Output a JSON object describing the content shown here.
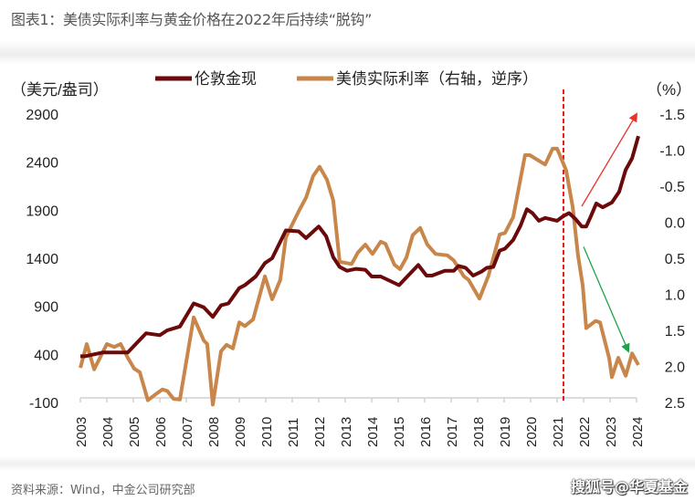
{
  "title": "图表1：美债实际利率与黄金价格在2022年后持续“脱钩”",
  "source": "资料来源：Wind，中金公司研究部",
  "watermark": "搜狐号@华夏基金",
  "chart_data": {
    "type": "line",
    "left_unit": "（美元/盎司）",
    "right_unit": "（%）",
    "left_ylim": [
      -100,
      2900
    ],
    "left_ticks": [
      "2900",
      "2400",
      "1900",
      "1400",
      "900",
      "400",
      "-100"
    ],
    "right_ylim": [
      -1.5,
      2.5
    ],
    "right_inverted": true,
    "right_ticks": [
      "-1.5",
      "-1.0",
      "-0.5",
      "0.0",
      "0.5",
      "1.0",
      "1.5",
      "2.0",
      "2.5"
    ],
    "x_ticks": [
      "2003",
      "2004",
      "2005",
      "2006",
      "2007",
      "2008",
      "2009",
      "2010",
      "2011",
      "2012",
      "2013",
      "2014",
      "2015",
      "2016",
      "2017",
      "2018",
      "2019",
      "2020",
      "2021",
      "2022",
      "2023",
      "2024"
    ],
    "grid": false,
    "legend_position": "top",
    "colors": {
      "gold": "#6b0a0a",
      "rate": "#c8864a",
      "divider": "#e0191b",
      "up_arrow": "#e8332e",
      "down_arrow": "#1ea34a"
    },
    "series": [
      {
        "name": "伦敦金现",
        "axis": "left",
        "points": [
          [
            2003.0,
            380
          ],
          [
            2003.17,
            380
          ],
          [
            2003.86,
            420
          ],
          [
            2004.79,
            420
          ],
          [
            2005.48,
            620
          ],
          [
            2006.0,
            600
          ],
          [
            2006.28,
            650
          ],
          [
            2006.76,
            690
          ],
          [
            2007.28,
            930
          ],
          [
            2007.66,
            890
          ],
          [
            2008.0,
            790
          ],
          [
            2008.31,
            910
          ],
          [
            2008.59,
            930
          ],
          [
            2009.0,
            1090
          ],
          [
            2009.21,
            1120
          ],
          [
            2009.62,
            1210
          ],
          [
            2009.97,
            1350
          ],
          [
            2010.24,
            1400
          ],
          [
            2010.76,
            1690
          ],
          [
            2011.24,
            1680
          ],
          [
            2011.52,
            1610
          ],
          [
            2012.0,
            1730
          ],
          [
            2012.28,
            1630
          ],
          [
            2012.55,
            1410
          ],
          [
            2012.79,
            1310
          ],
          [
            2013.07,
            1270
          ],
          [
            2013.41,
            1290
          ],
          [
            2013.76,
            1280
          ],
          [
            2014.0,
            1210
          ],
          [
            2014.34,
            1210
          ],
          [
            2015.03,
            1120
          ],
          [
            2015.76,
            1330
          ],
          [
            2016.07,
            1220
          ],
          [
            2016.28,
            1220
          ],
          [
            2016.76,
            1270
          ],
          [
            2017.1,
            1270
          ],
          [
            2017.28,
            1320
          ],
          [
            2017.55,
            1300
          ],
          [
            2017.83,
            1220
          ],
          [
            2018.14,
            1260
          ],
          [
            2018.34,
            1300
          ],
          [
            2018.59,
            1310
          ],
          [
            2018.83,
            1480
          ],
          [
            2019.03,
            1500
          ],
          [
            2019.34,
            1590
          ],
          [
            2019.62,
            1740
          ],
          [
            2019.86,
            1910
          ],
          [
            2020.07,
            1870
          ],
          [
            2020.31,
            1790
          ],
          [
            2020.55,
            1820
          ],
          [
            2021.0,
            1790
          ],
          [
            2021.24,
            1840
          ],
          [
            2021.45,
            1870
          ],
          [
            2021.69,
            1810
          ],
          [
            2021.93,
            1730
          ],
          [
            2022.1,
            1730
          ],
          [
            2022.28,
            1840
          ],
          [
            2022.48,
            1970
          ],
          [
            2022.72,
            1930
          ],
          [
            2023.07,
            1980
          ],
          [
            2023.34,
            2090
          ],
          [
            2023.59,
            2320
          ],
          [
            2023.83,
            2440
          ],
          [
            2024.07,
            2670
          ]
        ]
      },
      {
        "name": "美债实际利率（右轴，逆序）",
        "axis": "right",
        "points": [
          [
            2003.0,
            2.02
          ],
          [
            2003.24,
            1.69
          ],
          [
            2003.52,
            2.04
          ],
          [
            2004.0,
            1.69
          ],
          [
            2004.28,
            1.73
          ],
          [
            2004.52,
            1.69
          ],
          [
            2004.79,
            1.88
          ],
          [
            2005.03,
            2.03
          ],
          [
            2005.24,
            2.08
          ],
          [
            2005.55,
            2.47
          ],
          [
            2005.83,
            2.39
          ],
          [
            2006.1,
            2.32
          ],
          [
            2006.28,
            2.34
          ],
          [
            2006.52,
            2.45
          ],
          [
            2006.76,
            2.46
          ],
          [
            2007.28,
            1.32
          ],
          [
            2007.66,
            1.64
          ],
          [
            2007.79,
            1.69
          ],
          [
            2008.0,
            2.53
          ],
          [
            2008.31,
            1.79
          ],
          [
            2008.52,
            1.7
          ],
          [
            2008.76,
            1.75
          ],
          [
            2009.0,
            1.39
          ],
          [
            2009.21,
            1.44
          ],
          [
            2009.52,
            1.35
          ],
          [
            2009.97,
            0.75
          ],
          [
            2010.24,
            1.07
          ],
          [
            2010.55,
            0.8
          ],
          [
            2010.76,
            0.21
          ],
          [
            2011.24,
            -0.15
          ],
          [
            2011.52,
            -0.34
          ],
          [
            2011.79,
            -0.64
          ],
          [
            2012.03,
            -0.77
          ],
          [
            2012.31,
            -0.59
          ],
          [
            2012.55,
            -0.3
          ],
          [
            2012.79,
            0.55
          ],
          [
            2013.24,
            0.58
          ],
          [
            2013.48,
            0.42
          ],
          [
            2013.76,
            0.31
          ],
          [
            2014.03,
            0.44
          ],
          [
            2014.34,
            0.27
          ],
          [
            2014.52,
            0.3
          ],
          [
            2014.86,
            0.59
          ],
          [
            2015.07,
            0.65
          ],
          [
            2015.31,
            0.49
          ],
          [
            2015.55,
            0.18
          ],
          [
            2015.83,
            0.08
          ],
          [
            2016.1,
            0.31
          ],
          [
            2016.41,
            0.44
          ],
          [
            2016.86,
            0.46
          ],
          [
            2017.1,
            0.53
          ],
          [
            2017.48,
            0.75
          ],
          [
            2017.66,
            0.8
          ],
          [
            2018.07,
            1.06
          ],
          [
            2018.41,
            0.74
          ],
          [
            2018.83,
            0.17
          ],
          [
            2019.03,
            0.15
          ],
          [
            2019.34,
            -0.07
          ],
          [
            2019.79,
            -0.93
          ],
          [
            2019.97,
            -0.93
          ],
          [
            2020.55,
            -0.8
          ],
          [
            2020.83,
            -1.02
          ],
          [
            2021.0,
            -1.02
          ],
          [
            2021.34,
            -0.72
          ],
          [
            2021.59,
            -0.21
          ],
          [
            2021.79,
            0.46
          ],
          [
            2021.97,
            0.88
          ],
          [
            2022.1,
            1.47
          ],
          [
            2022.45,
            1.37
          ],
          [
            2022.62,
            1.39
          ],
          [
            2022.97,
            1.89
          ],
          [
            2023.07,
            2.15
          ],
          [
            2023.31,
            1.88
          ],
          [
            2023.59,
            2.13
          ],
          [
            2023.83,
            1.82
          ],
          [
            2024.07,
            1.98
          ]
        ]
      }
    ],
    "annotations": {
      "divider_year": 2021.24,
      "up_arrow": {
        "from": [
          2021.93,
          1940
        ],
        "to": [
          2024.0,
          2900
        ],
        "axis": "left"
      },
      "down_arrow": {
        "from": [
          2022.0,
          0.34
        ],
        "to": [
          2023.69,
          1.79
        ],
        "axis": "right"
      }
    }
  }
}
